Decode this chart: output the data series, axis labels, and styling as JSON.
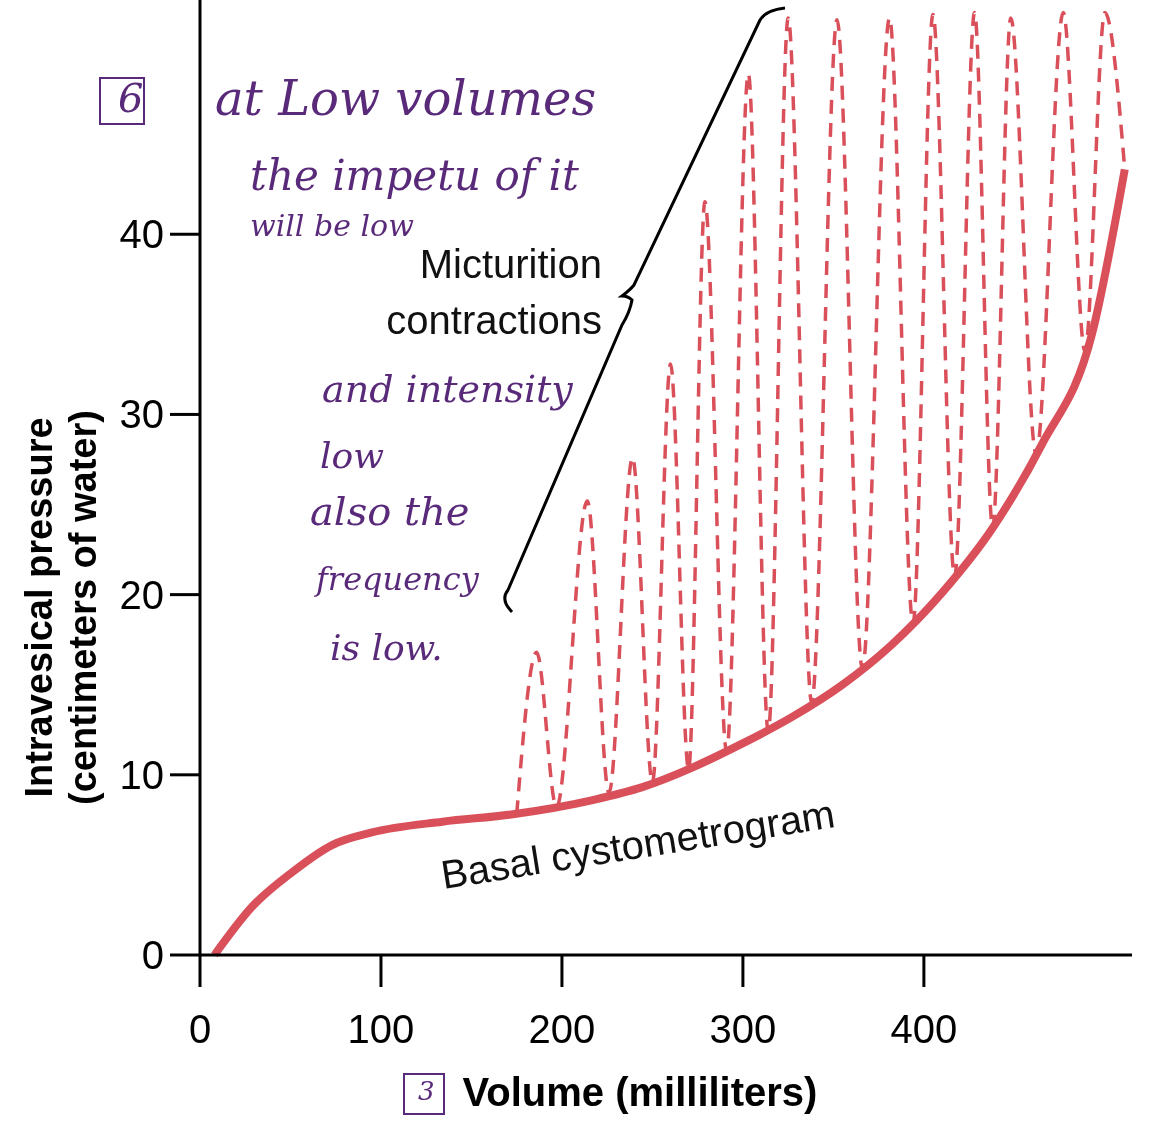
{
  "chart_data": {
    "type": "line",
    "xlabel": "Volume (milliliters)",
    "ylabel": "Intravesical pressure\n(centimeters of water)",
    "xlim": [
      0,
      515
    ],
    "ylim": [
      0,
      53
    ],
    "xticks": [
      0,
      100,
      200,
      300,
      400
    ],
    "yticks": [
      0,
      10,
      20,
      30,
      40
    ],
    "grid": false,
    "marker": "none",
    "series": [
      {
        "name": "Basal cystometrogram",
        "color": "#d9505a",
        "line_style": "solid",
        "x": [
          8,
          29,
          51,
          73,
          95,
          134,
          172,
          217,
          244,
          272,
          299,
          327,
          355,
          382,
          410,
          438,
          465,
          493,
          511
        ],
        "values": [
          0,
          2.7,
          4.6,
          6.1,
          6.8,
          7.4,
          7.8,
          8.6,
          9.3,
          10.4,
          11.7,
          13.2,
          15.0,
          17.2,
          20.1,
          23.7,
          28.3,
          34.5,
          43.6
        ]
      },
      {
        "name": "Micturition contractions",
        "color": "#d9505a",
        "line_style": "dashed",
        "x": [
          175,
          186,
          197,
          214,
          226,
          239,
          250,
          260,
          270,
          279,
          291,
          303,
          314,
          325,
          338,
          352,
          366,
          381,
          394,
          405,
          417,
          428,
          438,
          448,
          462,
          477,
          489,
          500,
          511
        ],
        "values": [
          7.8,
          16.8,
          8.2,
          25.2,
          9.0,
          27.6,
          9.6,
          32.8,
          10.3,
          41.8,
          11.3,
          48.9,
          12.4,
          52,
          14.0,
          51.9,
          15.9,
          52,
          18.4,
          52.2,
          21.0,
          52.3,
          23.7,
          52,
          27.8,
          52.3,
          33.5,
          52.3,
          43.6
        ]
      }
    ],
    "annotations": [
      "6",
      "at Low volumes",
      "the impetu of it",
      "will be low",
      "and intensity",
      "low",
      "also the",
      "frequency",
      "is low.",
      "3"
    ]
  }
}
